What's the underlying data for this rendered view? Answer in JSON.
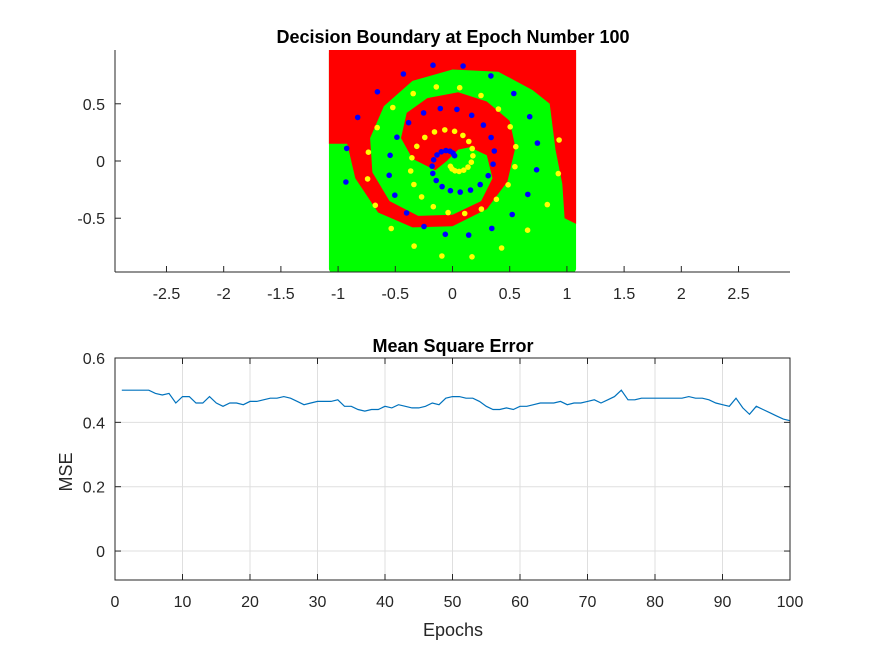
{
  "colors": {
    "class_red": "#ff0000",
    "class_green": "#00ff00",
    "points_blue": "#0000ff",
    "points_yellow": "#ffff00",
    "mse_line": "#0072bd"
  },
  "chart_data": [
    {
      "type": "scatter",
      "title": "Decision Boundary at Epoch Number 100",
      "xlabel": "",
      "ylabel": "",
      "xlim": [
        -2.95,
        2.95
      ],
      "ylim": [
        -0.97,
        0.97
      ],
      "x_ticks": [
        -2.5,
        -2,
        -1.5,
        -1,
        -0.5,
        0,
        0.5,
        1,
        1.5,
        2,
        2.5
      ],
      "x_tick_labels": [
        "-2.5",
        "-2",
        "-1.5",
        "-1",
        "-0.5",
        "0",
        "0.5",
        "1",
        "1.5",
        "2",
        "2.5"
      ],
      "y_ticks": [
        -0.5,
        0,
        0.5
      ],
      "y_tick_labels": [
        "-0.5",
        "0",
        "0.5"
      ],
      "grid": false,
      "background_region": {
        "xlim": [
          -1.08,
          1.08
        ],
        "ylim": [
          -0.97,
          0.97
        ],
        "classes": [
          "red",
          "green"
        ]
      },
      "series": [
        {
          "color": "blue",
          "description": "spiral arm A",
          "points": "spiral",
          "phase": 0
        },
        {
          "color": "yellow",
          "description": "spiral arm B",
          "points": "spiral",
          "phase": 3.14159
        }
      ]
    },
    {
      "type": "line",
      "title": "Mean Square Error",
      "xlabel": "Epochs",
      "ylabel": "MSE",
      "xlim": [
        0,
        100
      ],
      "ylim": [
        -0.09,
        0.6
      ],
      "x_ticks": [
        0,
        10,
        20,
        30,
        40,
        50,
        60,
        70,
        80,
        90,
        100
      ],
      "x_tick_labels": [
        "0",
        "10",
        "20",
        "30",
        "40",
        "50",
        "60",
        "70",
        "80",
        "90",
        "100"
      ],
      "y_ticks": [
        0,
        0.2,
        0.4,
        0.6
      ],
      "y_tick_labels": [
        "0",
        "0.2",
        "0.4",
        "0.6"
      ],
      "grid": true,
      "x": [
        1,
        2,
        3,
        4,
        5,
        6,
        7,
        8,
        9,
        10,
        11,
        12,
        13,
        14,
        15,
        16,
        17,
        18,
        19,
        20,
        21,
        22,
        23,
        24,
        25,
        26,
        27,
        28,
        29,
        30,
        31,
        32,
        33,
        34,
        35,
        36,
        37,
        38,
        39,
        40,
        41,
        42,
        43,
        44,
        45,
        46,
        47,
        48,
        49,
        50,
        51,
        52,
        53,
        54,
        55,
        56,
        57,
        58,
        59,
        60,
        61,
        62,
        63,
        64,
        65,
        66,
        67,
        68,
        69,
        70,
        71,
        72,
        73,
        74,
        75,
        76,
        77,
        78,
        79,
        80,
        81,
        82,
        83,
        84,
        85,
        86,
        87,
        88,
        89,
        90,
        91,
        92,
        93,
        94,
        95,
        96,
        97,
        98,
        99,
        100
      ],
      "y": [
        0.5,
        0.5,
        0.5,
        0.5,
        0.5,
        0.49,
        0.485,
        0.49,
        0.46,
        0.48,
        0.48,
        0.46,
        0.46,
        0.48,
        0.46,
        0.45,
        0.46,
        0.46,
        0.455,
        0.465,
        0.465,
        0.47,
        0.475,
        0.475,
        0.48,
        0.475,
        0.465,
        0.455,
        0.46,
        0.465,
        0.465,
        0.465,
        0.47,
        0.45,
        0.45,
        0.44,
        0.435,
        0.44,
        0.44,
        0.45,
        0.445,
        0.455,
        0.45,
        0.445,
        0.445,
        0.45,
        0.46,
        0.455,
        0.475,
        0.48,
        0.48,
        0.475,
        0.475,
        0.465,
        0.45,
        0.44,
        0.44,
        0.445,
        0.44,
        0.45,
        0.45,
        0.455,
        0.46,
        0.46,
        0.46,
        0.465,
        0.455,
        0.46,
        0.46,
        0.465,
        0.47,
        0.46,
        0.47,
        0.48,
        0.5,
        0.47,
        0.47,
        0.475,
        0.475,
        0.475,
        0.475,
        0.475,
        0.475,
        0.475,
        0.48,
        0.475,
        0.475,
        0.47,
        0.46,
        0.455,
        0.45,
        0.475,
        0.445,
        0.425,
        0.45,
        0.44,
        0.43,
        0.42,
        0.41,
        0.405
      ]
    }
  ]
}
